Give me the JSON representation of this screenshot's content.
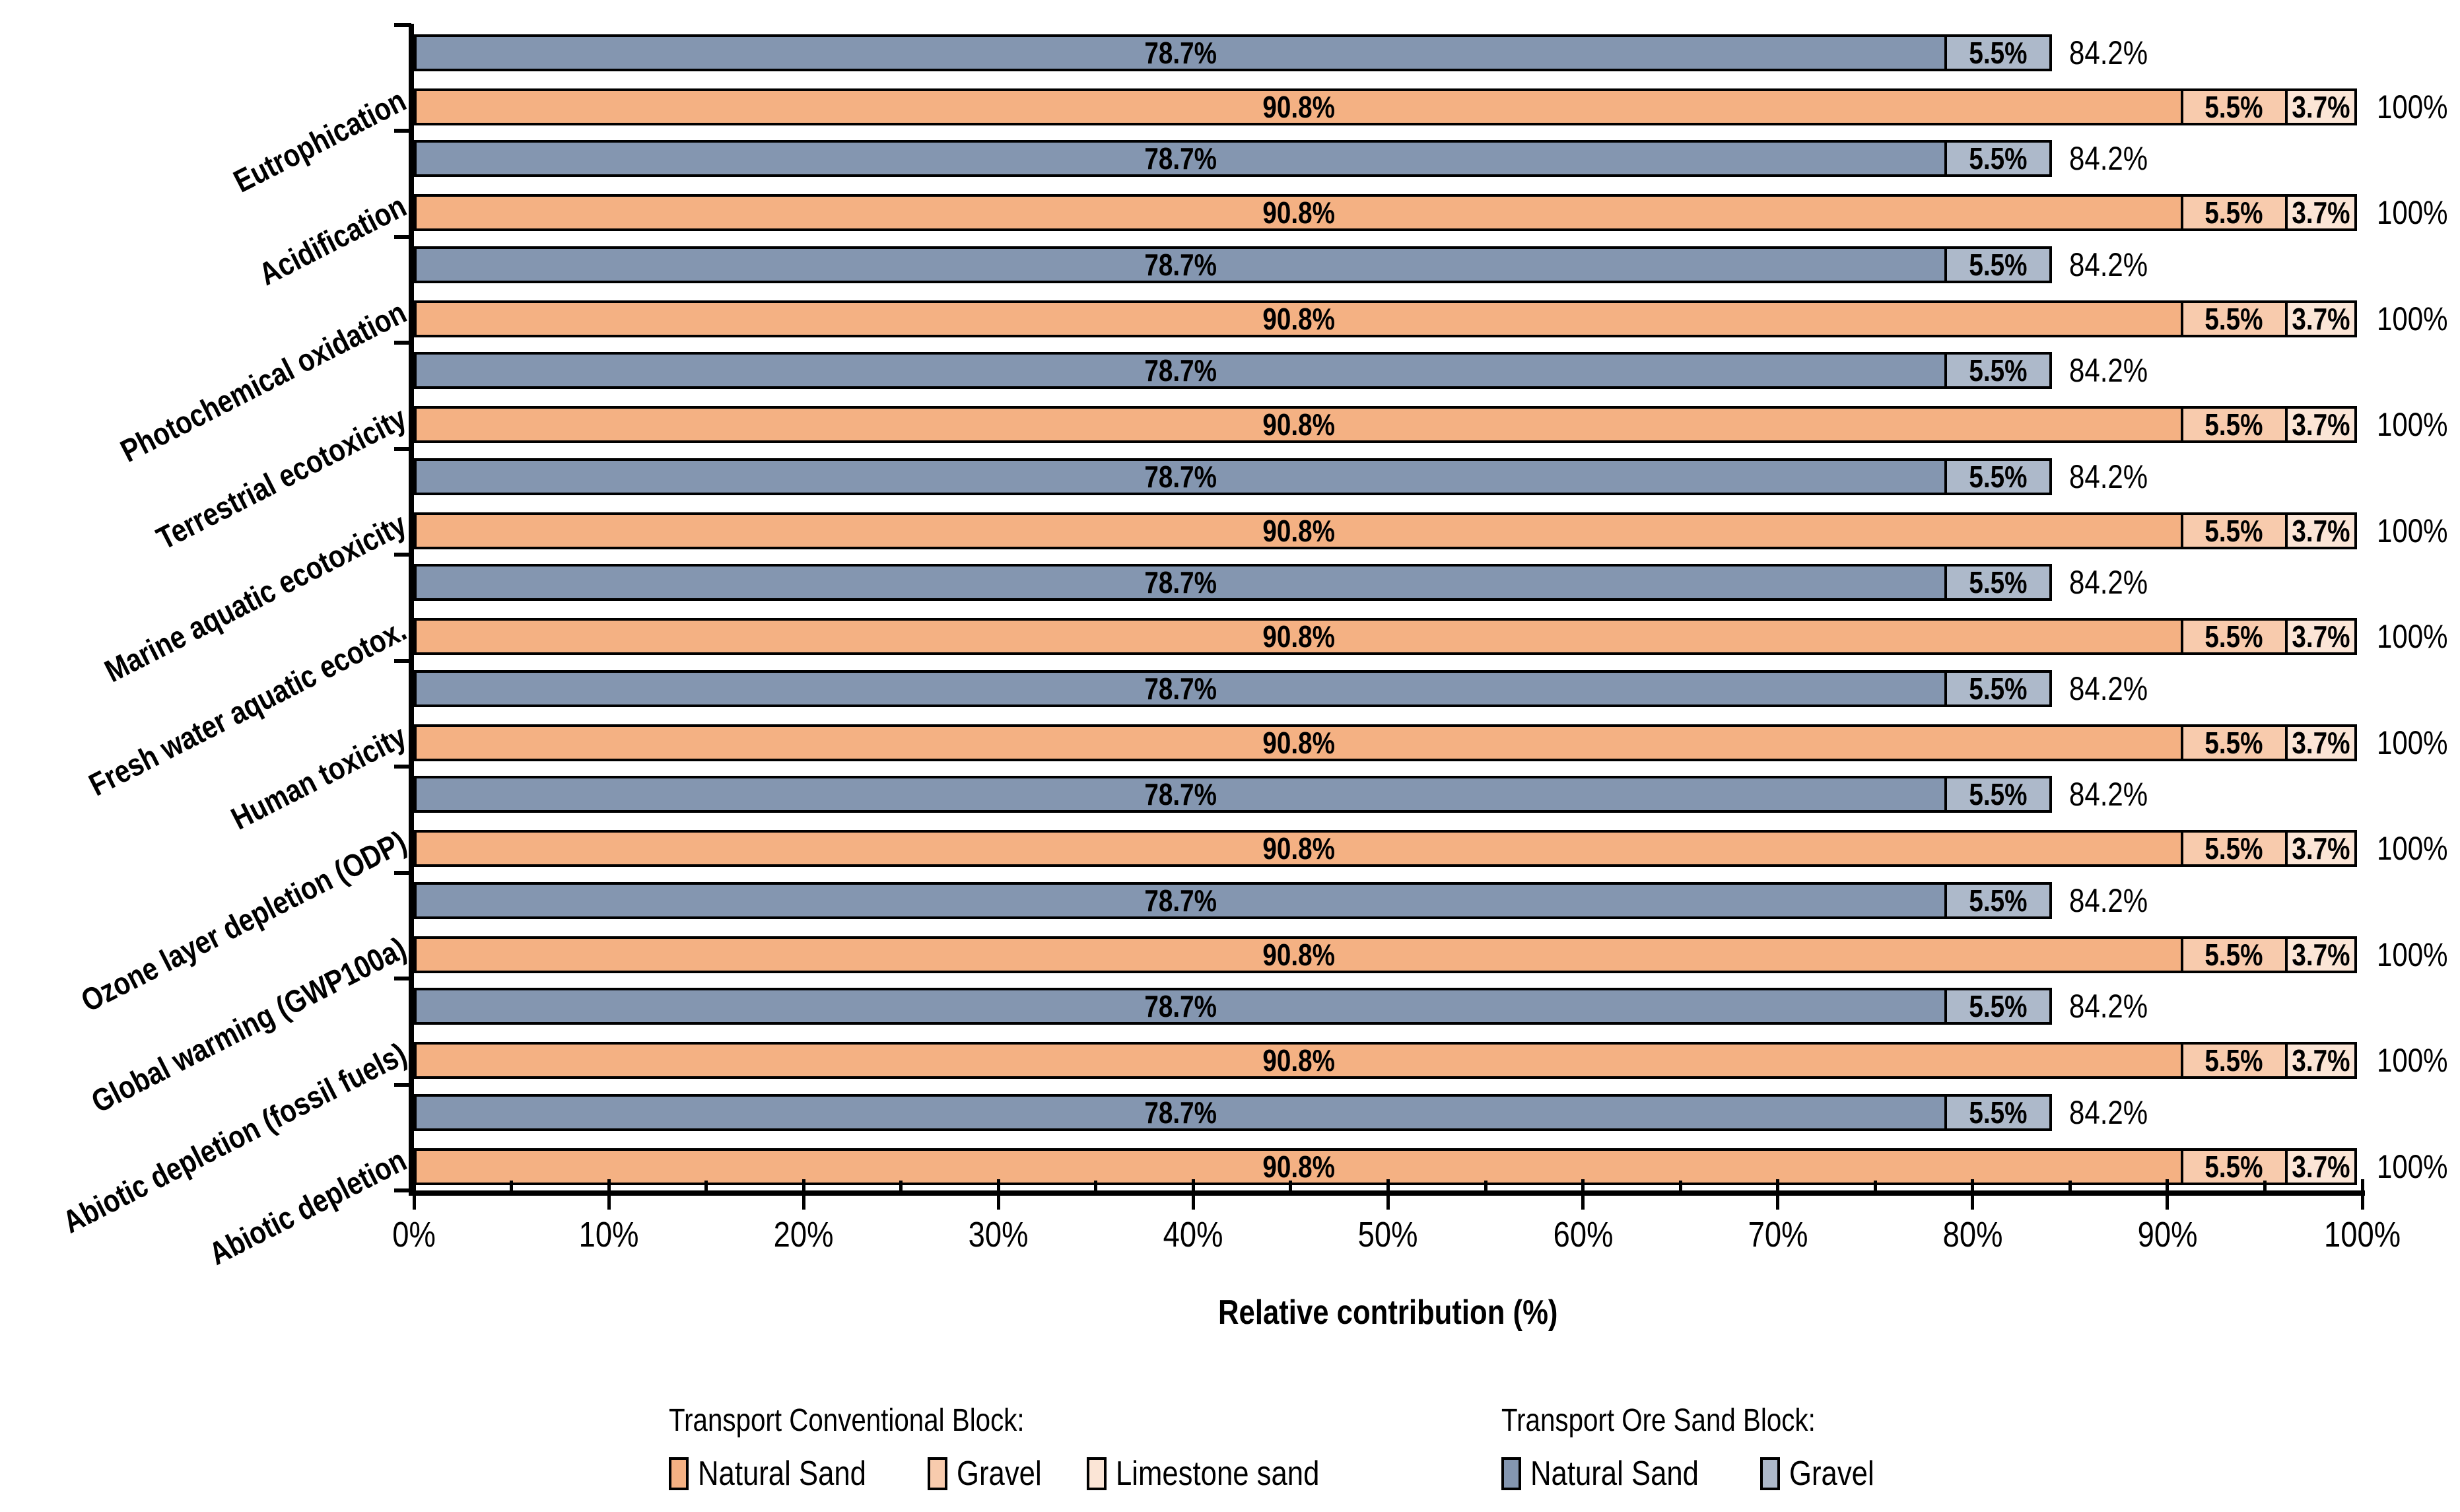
{
  "chart_data": {
    "type": "bar",
    "orientation": "horizontal",
    "stacked": true,
    "title": "",
    "xlabel": "Relative contribution (%)",
    "ylabel": "",
    "xlim": [
      0,
      100
    ],
    "x_ticks": [
      "0%",
      "10%",
      "20%",
      "30%",
      "40%",
      "50%",
      "60%",
      "70%",
      "80%",
      "90%",
      "100%"
    ],
    "minor_tick_step_percent": 5,
    "grid": "off",
    "legend_position": "bottom",
    "series_groups": [
      {
        "name": "Transport Ore Sand Block",
        "segments": [
          {
            "name": "Natural Sand",
            "color": "#8496B0"
          },
          {
            "name": "Gravel",
            "color": "#ADB9CA"
          }
        ]
      },
      {
        "name": "Transport Conventional Block",
        "segments": [
          {
            "name": "Natural Sand",
            "color": "#F4B183"
          },
          {
            "name": "Gravel",
            "color": "#F8CBAD"
          },
          {
            "name": "Limestone sand",
            "color": "#FBE5D6"
          }
        ]
      }
    ],
    "categories": [
      "Eutrophication",
      "Acidification",
      "Photochemical oxidation",
      "Terrestrial ecotoxicity",
      "Marine aquatic ecotoxicity",
      "Fresh water aquatic ecotox.",
      "Human toxicity",
      "Ozone layer depletion (ODP)",
      "Global warming (GWP100a)",
      "Abiotic depletion (fossil fuels)",
      "Abiotic depletion"
    ],
    "rows": [
      {
        "category": "Eutrophication",
        "ore": [
          {
            "label": "78.7%",
            "value": 78.7,
            "color": "#8496B0"
          },
          {
            "label": "5.5%",
            "value": 5.5,
            "color": "#ADB9CA"
          }
        ],
        "ore_total_label": "84.2%",
        "ore_total": 84.2,
        "conv": [
          {
            "label": "90.8%",
            "value": 90.8,
            "color": "#F4B183"
          },
          {
            "label": "5.5%",
            "value": 5.5,
            "color": "#F8CBAD"
          },
          {
            "label": "3.7%",
            "value": 3.7,
            "color": "#FBE5D6"
          }
        ],
        "conv_total_label": "100%",
        "conv_total": 100
      },
      {
        "category": "Acidification",
        "ore": [
          {
            "label": "78.7%",
            "value": 78.7,
            "color": "#8496B0"
          },
          {
            "label": "5.5%",
            "value": 5.5,
            "color": "#ADB9CA"
          }
        ],
        "ore_total_label": "84.2%",
        "ore_total": 84.2,
        "conv": [
          {
            "label": "90.8%",
            "value": 90.8,
            "color": "#F4B183"
          },
          {
            "label": "5.5%",
            "value": 5.5,
            "color": "#F8CBAD"
          },
          {
            "label": "3.7%",
            "value": 3.7,
            "color": "#FBE5D6"
          }
        ],
        "conv_total_label": "100%",
        "conv_total": 100
      },
      {
        "category": "Photochemical oxidation",
        "ore": [
          {
            "label": "78.7%",
            "value": 78.7,
            "color": "#8496B0"
          },
          {
            "label": "5.5%",
            "value": 5.5,
            "color": "#ADB9CA"
          }
        ],
        "ore_total_label": "84.2%",
        "ore_total": 84.2,
        "conv": [
          {
            "label": "90.8%",
            "value": 90.8,
            "color": "#F4B183"
          },
          {
            "label": "5.5%",
            "value": 5.5,
            "color": "#F8CBAD"
          },
          {
            "label": "3.7%",
            "value": 3.7,
            "color": "#FBE5D6"
          }
        ],
        "conv_total_label": "100%",
        "conv_total": 100
      },
      {
        "category": "Terrestrial ecotoxicity",
        "ore": [
          {
            "label": "78.7%",
            "value": 78.7,
            "color": "#8496B0"
          },
          {
            "label": "5.5%",
            "value": 5.5,
            "color": "#ADB9CA"
          }
        ],
        "ore_total_label": "84.2%",
        "ore_total": 84.2,
        "conv": [
          {
            "label": "90.8%",
            "value": 90.8,
            "color": "#F4B183"
          },
          {
            "label": "5.5%",
            "value": 5.5,
            "color": "#F8CBAD"
          },
          {
            "label": "3.7%",
            "value": 3.7,
            "color": "#FBE5D6"
          }
        ],
        "conv_total_label": "100%",
        "conv_total": 100
      },
      {
        "category": "Marine aquatic ecotoxicity",
        "ore": [
          {
            "label": "78.7%",
            "value": 78.7,
            "color": "#8496B0"
          },
          {
            "label": "5.5%",
            "value": 5.5,
            "color": "#ADB9CA"
          }
        ],
        "ore_total_label": "84.2%",
        "ore_total": 84.2,
        "conv": [
          {
            "label": "90.8%",
            "value": 90.8,
            "color": "#F4B183"
          },
          {
            "label": "5.5%",
            "value": 5.5,
            "color": "#F8CBAD"
          },
          {
            "label": "3.7%",
            "value": 3.7,
            "color": "#FBE5D6"
          }
        ],
        "conv_total_label": "100%",
        "conv_total": 100
      },
      {
        "category": "Fresh water aquatic ecotox.",
        "ore": [
          {
            "label": "78.7%",
            "value": 78.7,
            "color": "#8496B0"
          },
          {
            "label": "5.5%",
            "value": 5.5,
            "color": "#ADB9CA"
          }
        ],
        "ore_total_label": "84.2%",
        "ore_total": 84.2,
        "conv": [
          {
            "label": "90.8%",
            "value": 90.8,
            "color": "#F4B183"
          },
          {
            "label": "5.5%",
            "value": 5.5,
            "color": "#F8CBAD"
          },
          {
            "label": "3.7%",
            "value": 3.7,
            "color": "#FBE5D6"
          }
        ],
        "conv_total_label": "100%",
        "conv_total": 100
      },
      {
        "category": "Human toxicity",
        "ore": [
          {
            "label": "78.7%",
            "value": 78.7,
            "color": "#8496B0"
          },
          {
            "label": "5.5%",
            "value": 5.5,
            "color": "#ADB9CA"
          }
        ],
        "ore_total_label": "84.2%",
        "ore_total": 84.2,
        "conv": [
          {
            "label": "90.8%",
            "value": 90.8,
            "color": "#F4B183"
          },
          {
            "label": "5.5%",
            "value": 5.5,
            "color": "#F8CBAD"
          },
          {
            "label": "3.7%",
            "value": 3.7,
            "color": "#FBE5D6"
          }
        ],
        "conv_total_label": "100%",
        "conv_total": 100
      },
      {
        "category": "Ozone layer depletion (ODP)",
        "ore": [
          {
            "label": "78.7%",
            "value": 78.7,
            "color": "#8496B0"
          },
          {
            "label": "5.5%",
            "value": 5.5,
            "color": "#ADB9CA"
          }
        ],
        "ore_total_label": "84.2%",
        "ore_total": 84.2,
        "conv": [
          {
            "label": "90.8%",
            "value": 90.8,
            "color": "#F4B183"
          },
          {
            "label": "5.5%",
            "value": 5.5,
            "color": "#F8CBAD"
          },
          {
            "label": "3.7%",
            "value": 3.7,
            "color": "#FBE5D6"
          }
        ],
        "conv_total_label": "100%",
        "conv_total": 100
      },
      {
        "category": "Global warming (GWP100a)",
        "ore": [
          {
            "label": "78.7%",
            "value": 78.7,
            "color": "#8496B0"
          },
          {
            "label": "5.5%",
            "value": 5.5,
            "color": "#ADB9CA"
          }
        ],
        "ore_total_label": "84.2%",
        "ore_total": 84.2,
        "conv": [
          {
            "label": "90.8%",
            "value": 90.8,
            "color": "#F4B183"
          },
          {
            "label": "5.5%",
            "value": 5.5,
            "color": "#F8CBAD"
          },
          {
            "label": "3.7%",
            "value": 3.7,
            "color": "#FBE5D6"
          }
        ],
        "conv_total_label": "100%",
        "conv_total": 100
      },
      {
        "category": "Abiotic depletion (fossil fuels)",
        "ore": [
          {
            "label": "78.7%",
            "value": 78.7,
            "color": "#8496B0"
          },
          {
            "label": "5.5%",
            "value": 5.5,
            "color": "#ADB9CA"
          }
        ],
        "ore_total_label": "84.2%",
        "ore_total": 84.2,
        "conv": [
          {
            "label": "90.8%",
            "value": 90.8,
            "color": "#F4B183"
          },
          {
            "label": "5.5%",
            "value": 5.5,
            "color": "#F8CBAD"
          },
          {
            "label": "3.7%",
            "value": 3.7,
            "color": "#FBE5D6"
          }
        ],
        "conv_total_label": "100%",
        "conv_total": 100
      },
      {
        "category": "Abiotic depletion",
        "ore": [
          {
            "label": "78.7%",
            "value": 78.7,
            "color": "#8496B0"
          },
          {
            "label": "5.5%",
            "value": 5.5,
            "color": "#ADB9CA"
          }
        ],
        "ore_total_label": "84.2%",
        "ore_total": 84.2,
        "conv": [
          {
            "label": "90.8%",
            "value": 90.8,
            "color": "#F4B183"
          },
          {
            "label": "5.5%",
            "value": 5.5,
            "color": "#F8CBAD"
          },
          {
            "label": "3.7%",
            "value": 3.7,
            "color": "#FBE5D6"
          }
        ],
        "conv_total_label": "100%",
        "conv_total": 100
      }
    ]
  },
  "legend": {
    "groups": [
      {
        "title": "Transport Conventional Block:",
        "items": [
          {
            "label": "Natural Sand",
            "color": "#F4B183"
          },
          {
            "label": "Gravel",
            "color": "#F8CBAD"
          },
          {
            "label": "Limestone sand",
            "color": "#FBE5D6"
          }
        ]
      },
      {
        "title": "Transport Ore Sand Block:",
        "items": [
          {
            "label": "Natural Sand",
            "color": "#8496B0"
          },
          {
            "label": "Gravel",
            "color": "#ADB9CA"
          }
        ]
      }
    ]
  },
  "colors": {
    "axis": "#000000",
    "bar_border": "#000000",
    "conventional_natural_sand": "#F4B183",
    "conventional_gravel": "#F8CBAD",
    "conventional_limestone_sand": "#FBE5D6",
    "ore_natural_sand": "#8496B0",
    "ore_gravel": "#ADB9CA"
  }
}
